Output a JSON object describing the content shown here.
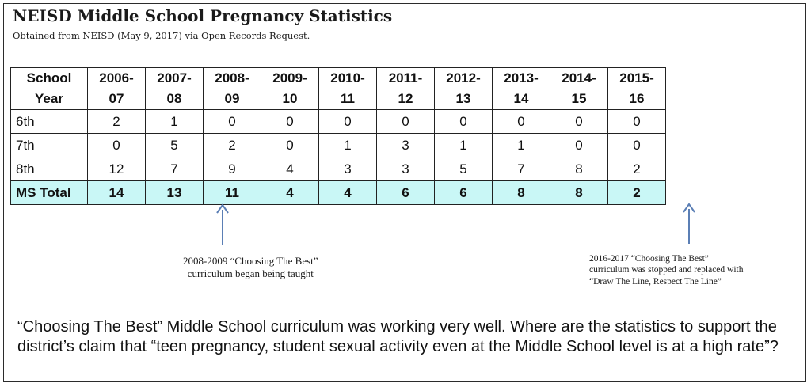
{
  "title": "NEISD Middle School Pregnancy Statistics",
  "subtitle": "Obtained from NEISD (May 9, 2017) via Open Records Request.",
  "table": {
    "header_label_line1": "School",
    "header_label_line2": "Year",
    "years": [
      {
        "line1": "2006-",
        "line2": "07"
      },
      {
        "line1": "2007-",
        "line2": "08"
      },
      {
        "line1": "2008-",
        "line2": "09"
      },
      {
        "line1": "2009-",
        "line2": "10"
      },
      {
        "line1": "2010-",
        "line2": "11"
      },
      {
        "line1": "2011-",
        "line2": "12"
      },
      {
        "line1": "2012-",
        "line2": "13"
      },
      {
        "line1": "2013-",
        "line2": "14"
      },
      {
        "line1": "2014-",
        "line2": "15"
      },
      {
        "line1": "2015-",
        "line2": "16"
      }
    ],
    "rows": [
      {
        "label": "6th",
        "values": [
          "2",
          "1",
          "0",
          "0",
          "0",
          "0",
          "0",
          "0",
          "0",
          "0"
        ]
      },
      {
        "label": "7th",
        "values": [
          "0",
          "5",
          "2",
          "0",
          "1",
          "3",
          "1",
          "1",
          "0",
          "0"
        ]
      },
      {
        "label": "8th",
        "values": [
          "12",
          "7",
          "9",
          "4",
          "3",
          "3",
          "5",
          "7",
          "8",
          "2"
        ]
      }
    ],
    "total": {
      "label": "MS Total",
      "values": [
        "14",
        "13",
        "11",
        "4",
        "4",
        "6",
        "6",
        "8",
        "8",
        "2"
      ]
    }
  },
  "colors": {
    "total_row_bg": "#c9f7f6",
    "arrow": "#5b7fb5"
  },
  "annotations": {
    "note1_line1": "2008-2009  “Choosing The Best”",
    "note1_line2": "curriculum began being taught",
    "note2_line1": "2016-2017  “Choosing The Best”",
    "note2_line2": "curriculum was stopped and replaced with",
    "note2_line3": "“Draw The Line, Respect The Line”"
  },
  "body_text": "“Choosing The Best” Middle School curriculum was working very well.  Where are the statistics to support the district’s claim that  “teen pregnancy, student sexual activity even at the Middle School level is at a high rate”?"
}
